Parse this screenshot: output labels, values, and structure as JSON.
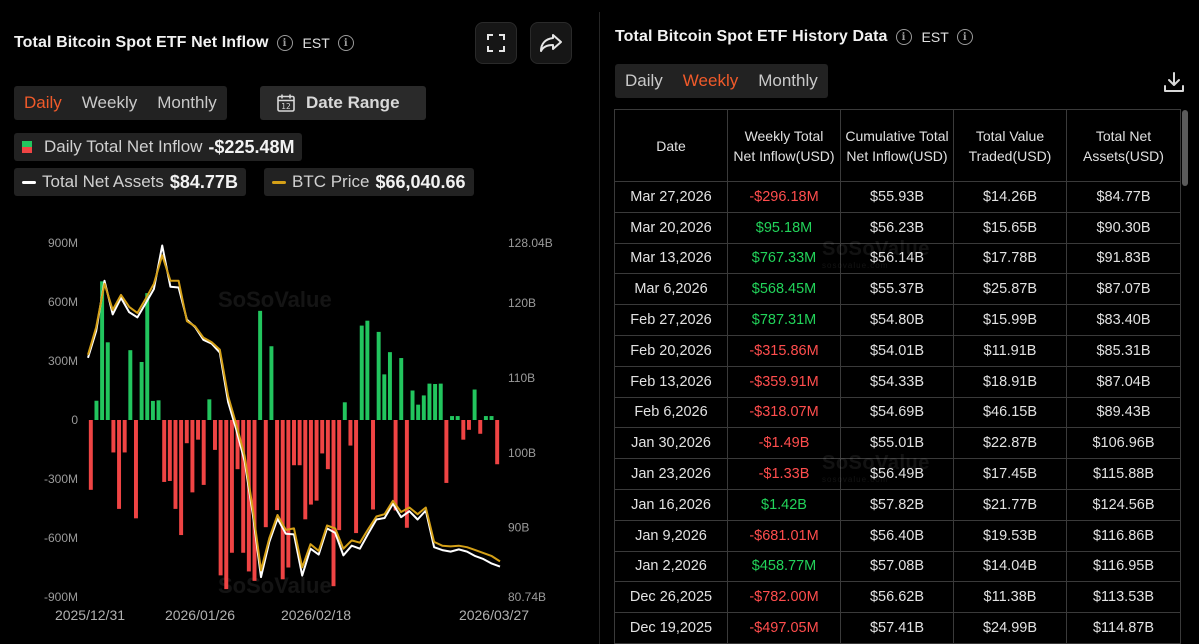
{
  "left": {
    "title": "Total Bitcoin Spot ETF Net Inflow",
    "timezone": "EST",
    "periods": [
      "Daily",
      "Weekly",
      "Monthly"
    ],
    "active_period": "Daily",
    "date_range_label": "Date Range",
    "stats": {
      "inflow_label": "Daily Total Net Inflow",
      "inflow_value": "-$225.48M",
      "assets_label": "Total Net Assets",
      "assets_value": "$84.77B",
      "btc_label": "BTC Price",
      "btc_value": "$66,040.66"
    },
    "watermark": "SoSoValue",
    "watermark_sub": "sosovalue.com"
  },
  "chart_data": {
    "type": "bar",
    "left_axis": {
      "ticks": [
        "900M",
        "600M",
        "300M",
        "0",
        "-300M",
        "-600M",
        "-900M"
      ],
      "ylim": [
        -900,
        900
      ],
      "unit": "M"
    },
    "right_axis": {
      "ticks": [
        "128.04B",
        "120B",
        "110B",
        "100B",
        "90B",
        "80.74B"
      ],
      "ylim": [
        80.74,
        128.04
      ]
    },
    "x_ticks": [
      "2025/12/31",
      "2026/01/26",
      "2026/02/18",
      "2026/03/27"
    ],
    "colors": {
      "positive": "#22c55e",
      "negative": "#ef4444",
      "net_assets": "#ffffff",
      "btc_price": "#d4a017"
    },
    "series": [
      {
        "name": "Daily Total Net Inflow",
        "values": [
          -355,
          98,
          705,
          395,
          -165,
          -452,
          -165,
          355,
          -500,
          295,
          645,
          97,
          100,
          -315,
          -310,
          -452,
          -585,
          -118,
          -368,
          -100,
          -330,
          105,
          -152,
          -790,
          -860,
          -675,
          -250,
          -675,
          -770,
          -818,
          555,
          -545,
          375,
          -458,
          -810,
          -750,
          -230,
          -230,
          -505,
          -430,
          -410,
          -170,
          -250,
          -845,
          -560,
          90,
          -130,
          -575,
          480,
          505,
          -455,
          448,
          232,
          345,
          -460,
          315,
          -548,
          150,
          78,
          125,
          185,
          183,
          185,
          -320,
          20,
          20,
          -100,
          -50,
          155,
          -70,
          20,
          20,
          -225
        ]
      },
      {
        "name": "Total Net Assets",
        "values": [
          112.7,
          116.3,
          123.0,
          118.5,
          120.7,
          118.8,
          118.1,
          120.0,
          121.9,
          127.7,
          122.2,
          122.1,
          117.8,
          116.8,
          115.1,
          114.6,
          113.4,
          106.8,
          103.1,
          98.9,
          91.8,
          83.4,
          88.1,
          91.2,
          89.2,
          89.1,
          83.6,
          87.2,
          86.4,
          89.9,
          89.3,
          86.3,
          87.6,
          87.2,
          89.2,
          91.1,
          91.3,
          93.2,
          91.4,
          92.2,
          91.1,
          92.3,
          87.4,
          87.0,
          86.8,
          87.1,
          86.8,
          86.2,
          85.8,
          85.2,
          84.8
        ]
      },
      {
        "name": "BTC Price",
        "values": [
          113.1,
          116.8,
          122.6,
          119.1,
          121.1,
          119.5,
          118.7,
          120.6,
          122.6,
          126.4,
          123.0,
          123.0,
          117.6,
          116.9,
          115.4,
          114.8,
          113.8,
          107.6,
          103.8,
          99.6,
          92.5,
          84.3,
          88.6,
          91.7,
          89.7,
          89.9,
          84.7,
          87.8,
          86.9,
          90.3,
          89.9,
          87.2,
          88.3,
          88.0,
          89.8,
          91.5,
          91.8,
          93.6,
          92.1,
          92.7,
          91.8,
          92.7,
          88.1,
          87.6,
          87.5,
          87.6,
          87.4,
          87.0,
          86.6,
          86.2,
          85.5
        ]
      }
    ]
  },
  "right": {
    "title": "Total Bitcoin Spot ETF History Data",
    "timezone": "EST",
    "periods": [
      "Daily",
      "Weekly",
      "Monthly"
    ],
    "active_period": "Weekly",
    "columns": [
      "Date",
      "Weekly Total Net Inflow(USD)",
      "Cumulative Total Net Inflow(USD)",
      "Total Value Traded(USD)",
      "Total Net Assets(USD)"
    ],
    "rows": [
      [
        "Mar 27,2026",
        "-$296.18M",
        "$55.93B",
        "$14.26B",
        "$84.77B"
      ],
      [
        "Mar 20,2026",
        "$95.18M",
        "$56.23B",
        "$15.65B",
        "$90.30B"
      ],
      [
        "Mar 13,2026",
        "$767.33M",
        "$56.14B",
        "$17.78B",
        "$91.83B"
      ],
      [
        "Mar 6,2026",
        "$568.45M",
        "$55.37B",
        "$25.87B",
        "$87.07B"
      ],
      [
        "Feb 27,2026",
        "$787.31M",
        "$54.80B",
        "$15.99B",
        "$83.40B"
      ],
      [
        "Feb 20,2026",
        "-$315.86M",
        "$54.01B",
        "$11.91B",
        "$85.31B"
      ],
      [
        "Feb 13,2026",
        "-$359.91M",
        "$54.33B",
        "$18.91B",
        "$87.04B"
      ],
      [
        "Feb 6,2026",
        "-$318.07M",
        "$54.69B",
        "$46.15B",
        "$89.43B"
      ],
      [
        "Jan 30,2026",
        "-$1.49B",
        "$55.01B",
        "$22.87B",
        "$106.96B"
      ],
      [
        "Jan 23,2026",
        "-$1.33B",
        "$56.49B",
        "$17.45B",
        "$115.88B"
      ],
      [
        "Jan 16,2026",
        "$1.42B",
        "$57.82B",
        "$21.77B",
        "$124.56B"
      ],
      [
        "Jan 9,2026",
        "-$681.01M",
        "$56.40B",
        "$19.53B",
        "$116.86B"
      ],
      [
        "Jan 2,2026",
        "$458.77M",
        "$57.08B",
        "$14.04B",
        "$116.95B"
      ],
      [
        "Dec 26,2025",
        "-$782.00M",
        "$56.62B",
        "$11.38B",
        "$113.53B"
      ],
      [
        "Dec 19,2025",
        "-$497.05M",
        "$57.41B",
        "$24.99B",
        "$114.87B"
      ]
    ],
    "watermark": "SoSoValue",
    "watermark_sub": "sosovalue.com"
  }
}
